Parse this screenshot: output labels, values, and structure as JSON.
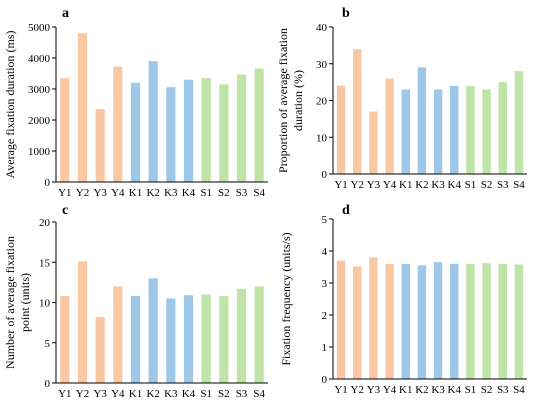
{
  "colors": {
    "Y": "#F9C8A2",
    "K": "#9DC8EA",
    "S": "#BFE4A7",
    "axis": "#000000"
  },
  "chart_data": [
    {
      "panel": "a",
      "type": "bar",
      "categories": [
        "Y1",
        "Y2",
        "Y3",
        "Y4",
        "K1",
        "K2",
        "K3",
        "K4",
        "S1",
        "S2",
        "S3",
        "S4"
      ],
      "values": [
        3350,
        4800,
        2350,
        3720,
        3200,
        3900,
        3060,
        3300,
        3350,
        3150,
        3470,
        3660
      ],
      "ylabel": "Average fixation duration (ms)",
      "ylim": [
        0,
        5000
      ],
      "yticks": [
        0,
        1000,
        2000,
        3000,
        4000,
        5000
      ]
    },
    {
      "panel": "b",
      "type": "bar",
      "categories": [
        "Y1",
        "Y2",
        "Y3",
        "Y4",
        "K1",
        "K2",
        "K3",
        "K4",
        "S1",
        "S2",
        "S3",
        "S4"
      ],
      "values": [
        24,
        34,
        17,
        26,
        23,
        29,
        23,
        24,
        24,
        23,
        25,
        28
      ],
      "ylabel": "Proportion of average fixation duration (%)",
      "ylabel_lines": [
        "Proportion of average fixation",
        "duration (%)"
      ],
      "ylim": [
        0,
        40
      ],
      "yticks": [
        0,
        10,
        20,
        30,
        40
      ]
    },
    {
      "panel": "c",
      "type": "bar",
      "categories": [
        "Y1",
        "Y2",
        "Y3",
        "Y4",
        "K1",
        "K2",
        "K3",
        "K4",
        "S1",
        "S2",
        "S3",
        "S4"
      ],
      "values": [
        10.8,
        15.1,
        8.2,
        12.0,
        10.8,
        13.0,
        10.5,
        10.9,
        11.0,
        10.8,
        11.7,
        12.0
      ],
      "ylabel": "Number of average fixation point (units)",
      "ylabel_lines": [
        "Number of average fixation",
        "point (units)"
      ],
      "ylim": [
        0,
        20
      ],
      "yticks": [
        0,
        5,
        10,
        15,
        20
      ]
    },
    {
      "panel": "d",
      "type": "bar",
      "categories": [
        "Y1",
        "Y2",
        "Y3",
        "Y4",
        "K1",
        "K2",
        "K3",
        "K4",
        "S1",
        "S2",
        "S3",
        "S4"
      ],
      "values": [
        3.7,
        3.52,
        3.8,
        3.6,
        3.6,
        3.55,
        3.65,
        3.6,
        3.6,
        3.62,
        3.6,
        3.58
      ],
      "ylabel": "Fixation frequency (units/s)",
      "ylim": [
        0,
        5
      ],
      "yticks": [
        0,
        1,
        2,
        3,
        4,
        5
      ]
    }
  ]
}
